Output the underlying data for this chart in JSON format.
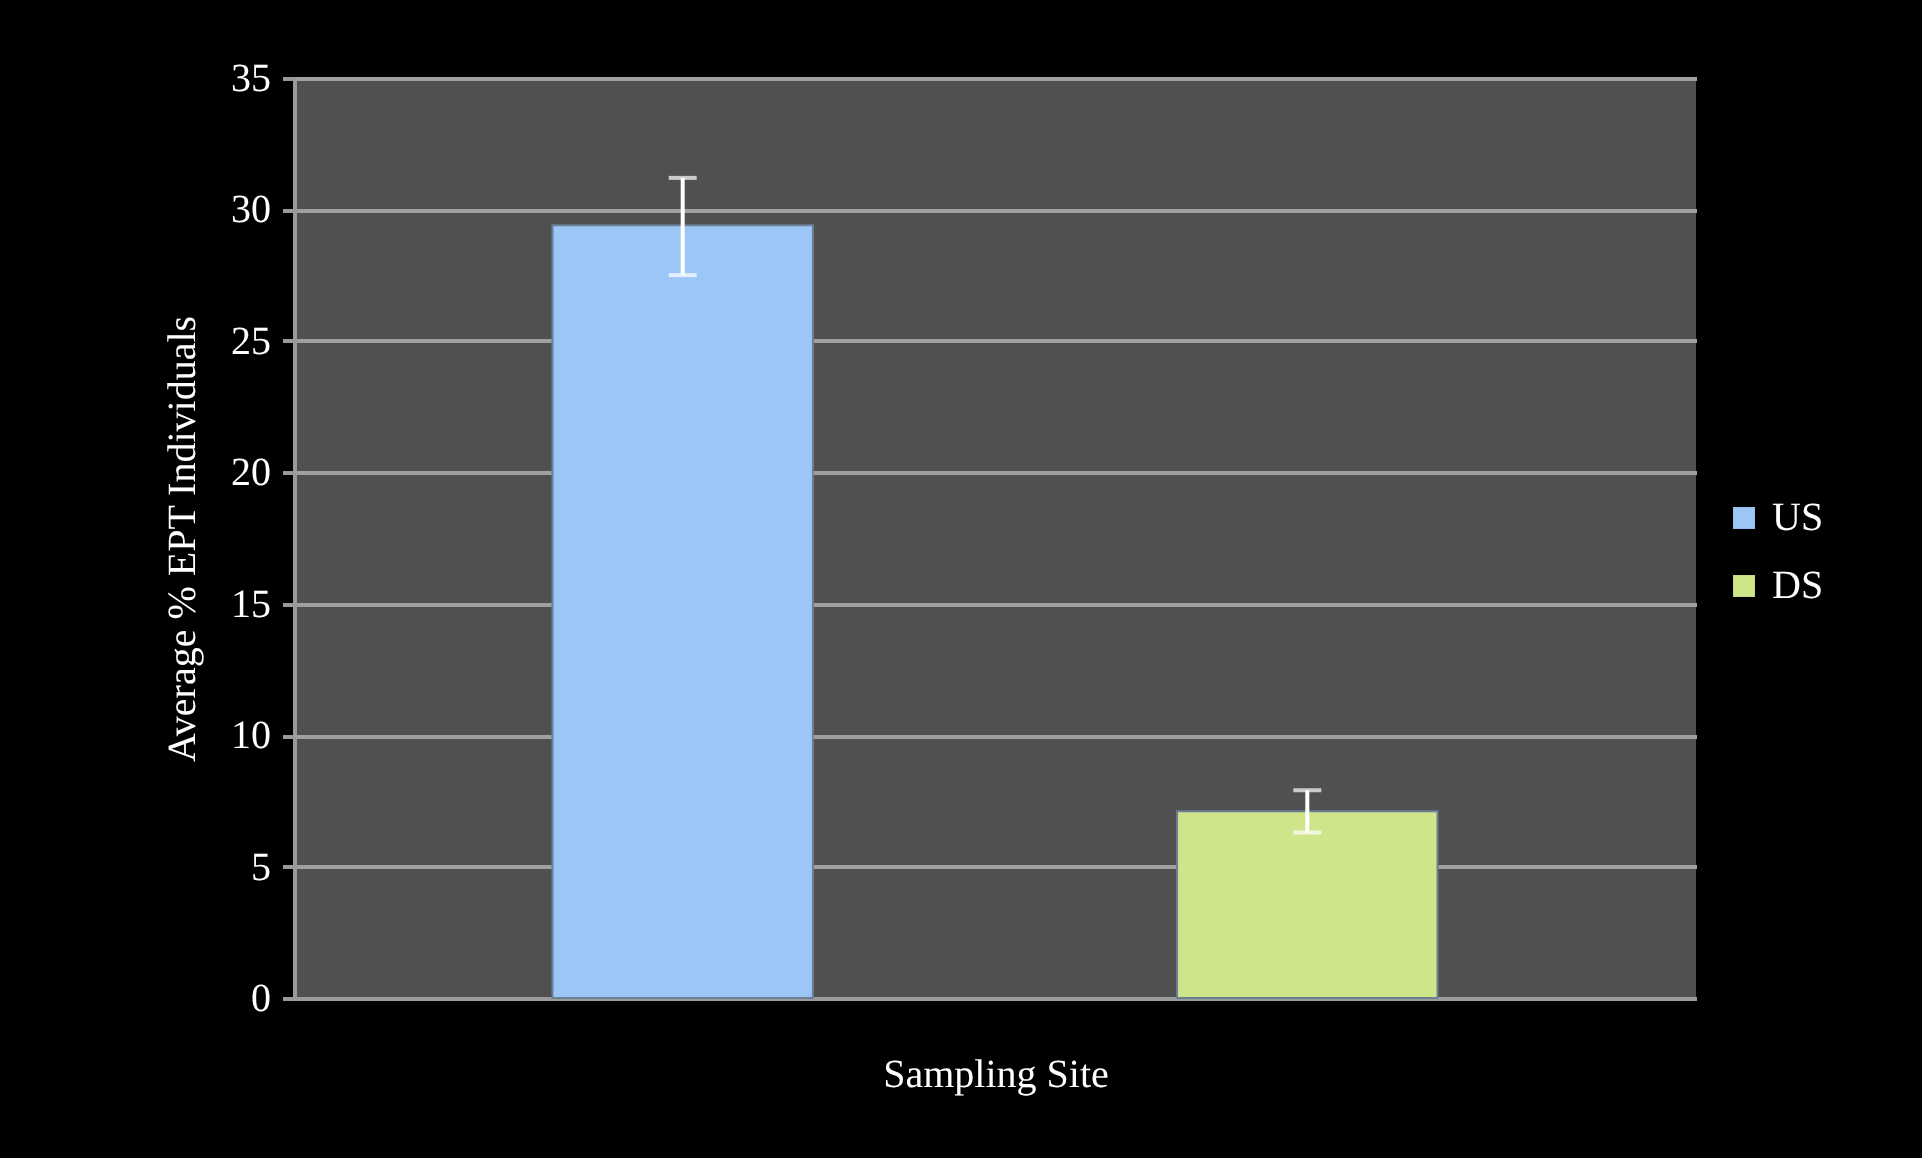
{
  "chart_data": {
    "type": "bar",
    "xlabel": "Sampling Site",
    "ylabel": "Average % EPT Individuals",
    "categories": [
      null
    ],
    "series": [
      {
        "name": "US",
        "color": "#9cc6f6",
        "values": [
          29.4
        ],
        "errors": [
          [
            27.5,
            31.2
          ]
        ]
      },
      {
        "name": "DS",
        "color": "#cfe58a",
        "values": [
          7.1
        ],
        "errors": [
          [
            6.3,
            7.9
          ]
        ]
      }
    ],
    "ylim": [
      0,
      35
    ],
    "yticks": [
      0,
      5,
      10,
      15,
      20,
      25,
      30,
      35
    ],
    "grid": "y",
    "legend": "right"
  }
}
